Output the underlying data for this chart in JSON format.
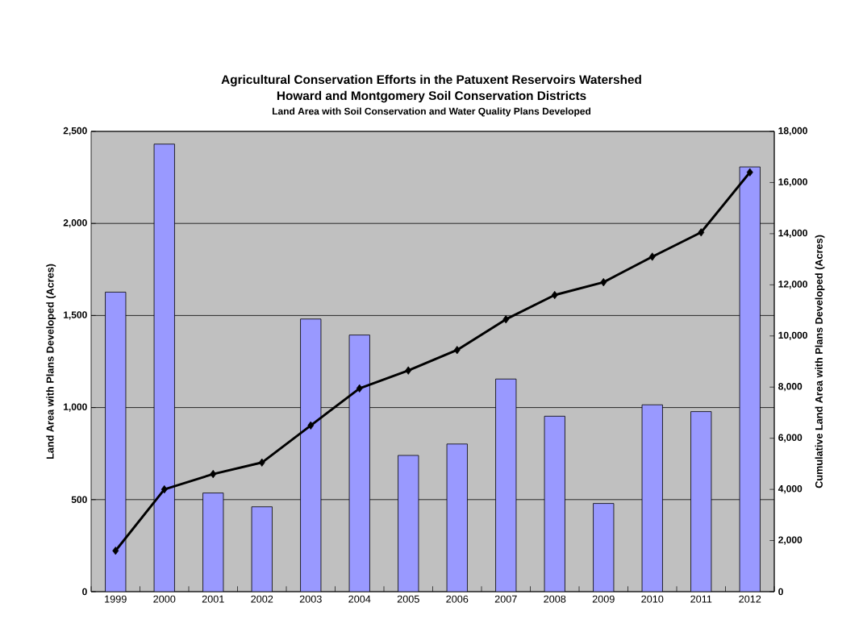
{
  "chart_data": {
    "type": "bar",
    "title": "Agricultural Conservation Efforts in the Patuxent Reservoirs Watershed",
    "subtitle": "Howard and Montgomery Soil Conservation Districts",
    "annotations": [
      "Land Area with Soil Conservation and Water Quality  Plans Developed"
    ],
    "ylabel": "Land Area with Plans Developed (Acres)",
    "y2label": "Cumulative Land Area with Plans Developed (Acres)",
    "categories": [
      "1999",
      "2000",
      "2001",
      "2002",
      "2003",
      "2004",
      "2005",
      "2006",
      "2007",
      "2008",
      "2009",
      "2010",
      "2011",
      "2012"
    ],
    "series": [
      {
        "color": "#9999ff",
        "values": [
          1627,
          2431,
          536,
          461,
          1481,
          1394,
          740,
          802,
          1155,
          953,
          479,
          1015,
          978,
          2307
        ]
      },
      {
        "type": "line",
        "axis": "y2",
        "color": "#000000",
        "marker": "diamond",
        "values": [
          1600,
          4000,
          4600,
          5050,
          6500,
          7950,
          8650,
          9450,
          10650,
          11600,
          12100,
          13100,
          14050,
          16400
        ]
      }
    ],
    "ylim": [
      0,
      2500
    ],
    "yticks": [
      0,
      500,
      {
        "value": 1000,
        "label": "1,000"
      },
      {
        "value": 1500,
        "label": "1,500"
      },
      {
        "value": 2000,
        "label": "2,000"
      },
      {
        "value": 2500,
        "label": "2,500"
      }
    ],
    "y2lim": [
      0,
      18000
    ],
    "y2ticks": [
      0,
      {
        "value": 2000,
        "label": "2,000"
      },
      {
        "value": 4000,
        "label": "4,000"
      },
      {
        "value": 6000,
        "label": "6,000"
      },
      {
        "value": 8000,
        "label": "8,000"
      },
      {
        "value": 10000,
        "label": "10,000"
      },
      {
        "value": 12000,
        "label": "12,000"
      },
      {
        "value": 14000,
        "label": "14,000"
      },
      {
        "value": 16000,
        "label": "16,000"
      },
      {
        "value": 18000,
        "label": "18,000"
      }
    ],
    "grid": "y",
    "legend": false
  }
}
